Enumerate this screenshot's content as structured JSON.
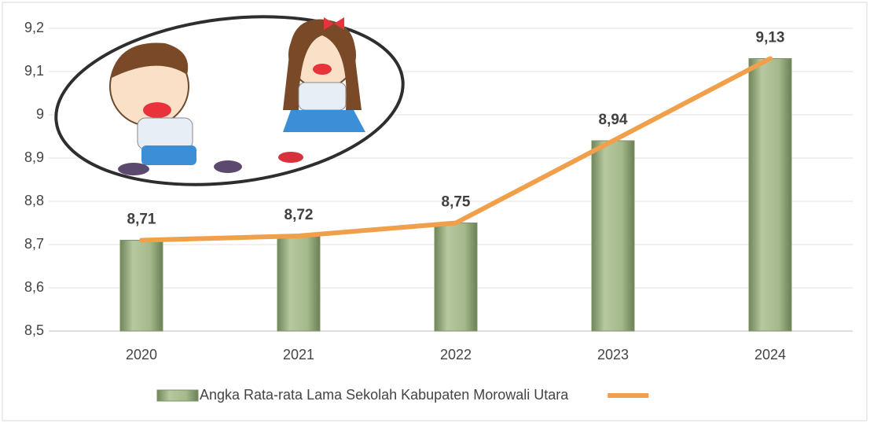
{
  "chart_data": {
    "type": "bar",
    "categories": [
      "2020",
      "2021",
      "2022",
      "2023",
      "2024"
    ],
    "series": [
      {
        "name": "Angka Rata-rata Lama Sekolah Kabupaten Morowali Utara",
        "type": "bar",
        "color": "#9aae82",
        "values": [
          8.71,
          8.72,
          8.75,
          8.94,
          9.13
        ],
        "value_labels": [
          "8,71",
          "8,72",
          "8,75",
          "8,94",
          "9,13"
        ]
      },
      {
        "type": "line",
        "color": "#f0a04b",
        "values": [
          8.71,
          8.72,
          8.75,
          8.94,
          9.13
        ]
      }
    ],
    "ylim": [
      8.5,
      9.2
    ],
    "yticks": [
      {
        "value": 8.5,
        "label": "8,5"
      },
      {
        "value": 8.6,
        "label": "8,6"
      },
      {
        "value": 8.7,
        "label": "8,7"
      },
      {
        "value": 8.8,
        "label": "8,8"
      },
      {
        "value": 8.9,
        "label": "8,9"
      },
      {
        "value": 9,
        "label": "9"
      },
      {
        "value": 9.1,
        "label": "9,1"
      },
      {
        "value": 9.2,
        "label": "9,2"
      }
    ],
    "grid": true
  }
}
